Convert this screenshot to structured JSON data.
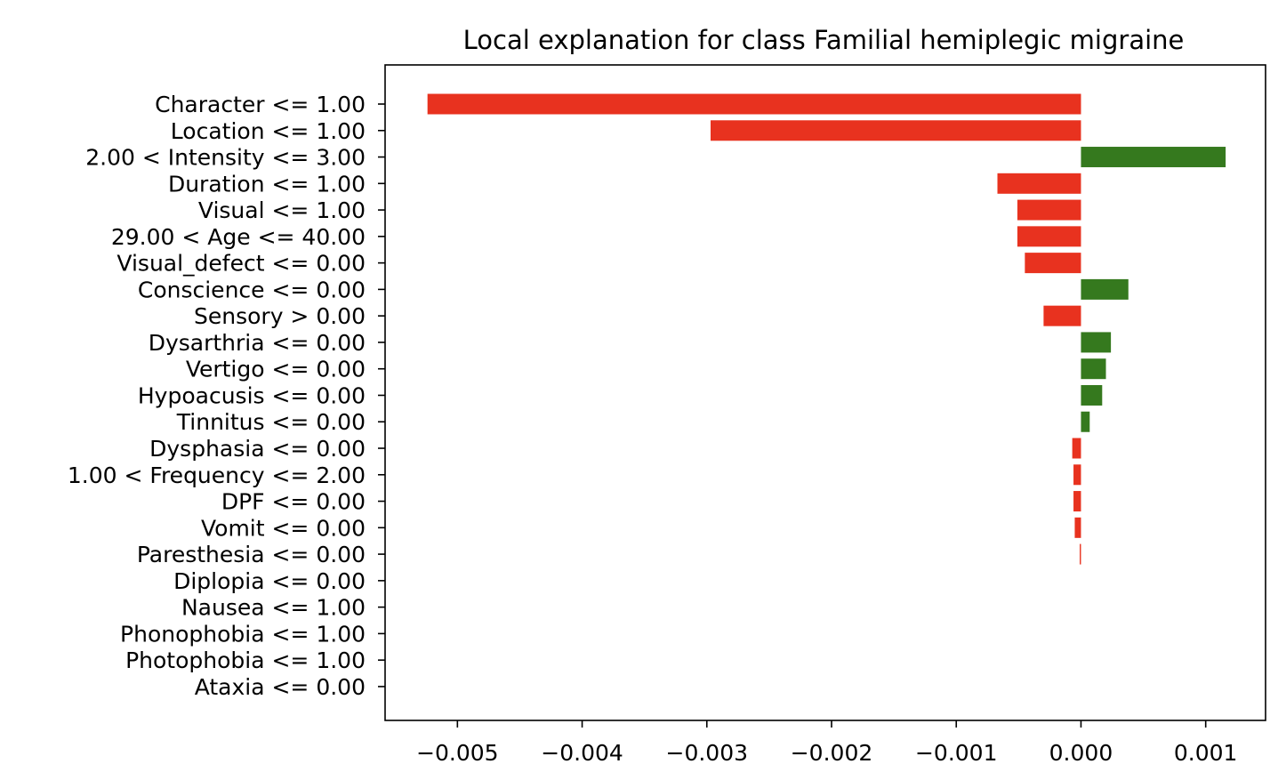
{
  "chart_data": {
    "type": "bar",
    "orientation": "horizontal",
    "title": "Local explanation for class Familial hemiplegic migraine",
    "xlabel": "",
    "ylabel": "",
    "xlim": [
      -0.00558,
      0.00148
    ],
    "grid": false,
    "legend": "none",
    "colors": {
      "negative": "#e8321f",
      "positive": "#35791e"
    },
    "xticks": [
      {
        "value": -0.005,
        "label": "−0.005"
      },
      {
        "value": -0.004,
        "label": "−0.004"
      },
      {
        "value": -0.003,
        "label": "−0.003"
      },
      {
        "value": -0.002,
        "label": "−0.002"
      },
      {
        "value": -0.001,
        "label": "−0.001"
      },
      {
        "value": 0.0,
        "label": "0.000"
      },
      {
        "value": 0.001,
        "label": "0.001"
      }
    ],
    "categories": [
      "Character <= 1.00",
      "Location <= 1.00",
      "2.00 < Intensity <= 3.00",
      "Duration <= 1.00",
      "Visual <= 1.00",
      "29.00 < Age <= 40.00",
      "Visual_defect <= 0.00",
      "Conscience <= 0.00",
      "Sensory > 0.00",
      "Dysarthria <= 0.00",
      "Vertigo <= 0.00",
      "Hypoacusis <= 0.00",
      "Tinnitus <= 0.00",
      "Dysphasia <= 0.00",
      "1.00 < Frequency <= 2.00",
      "DPF <= 0.00",
      "Vomit <= 0.00",
      "Paresthesia <= 0.00",
      "Diplopia <= 0.00",
      "Nausea <= 1.00",
      "Phonophobia <= 1.00",
      "Photophobia <= 1.00",
      "Ataxia <= 0.00"
    ],
    "values": [
      -0.00524,
      -0.00297,
      0.00116,
      -0.00067,
      -0.00051,
      -0.00051,
      -0.00045,
      0.00038,
      -0.0003,
      0.00024,
      0.0002,
      0.00017,
      7e-05,
      -7e-05,
      -6e-05,
      -6e-05,
      -5e-05,
      -1e-05,
      0.0,
      0.0,
      0.0,
      0.0,
      0.0
    ]
  }
}
